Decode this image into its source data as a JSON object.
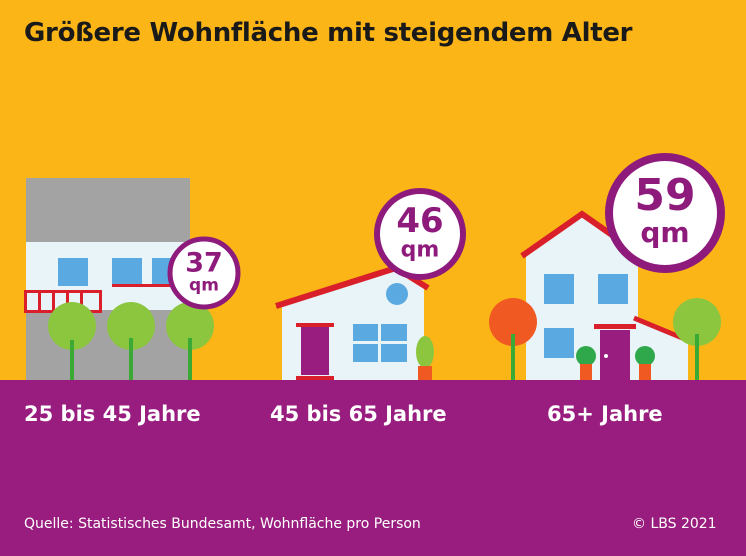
{
  "title": "Größere Wohnfläche mit steigendem Alter",
  "source": "Quelle: Statistisches Bundesamt, Wohnfläche pro Person",
  "copyright": "© LBS 2021",
  "unit": "qm",
  "colors": {
    "background": "#fbb516",
    "ground": "#981d7f",
    "accent": "#8e1b7c",
    "roof": "#d9202a",
    "house_wall": "#e8f4f8",
    "window": "#5aa9e0",
    "tree_green": "#8cc63f",
    "tree_orange": "#f05a22",
    "tree_trunk": "#3ba935"
  },
  "chart_data": {
    "type": "bar",
    "title": "Größere Wohnfläche mit steigendem Alter",
    "categories": [
      "25 bis 45 Jahre",
      "45 bis 65 Jahre",
      "65+ Jahre"
    ],
    "values": [
      37,
      46,
      59
    ],
    "unit": "qm",
    "source": "Quelle: Statistisches Bundesamt, Wohnfläche pro Person"
  }
}
